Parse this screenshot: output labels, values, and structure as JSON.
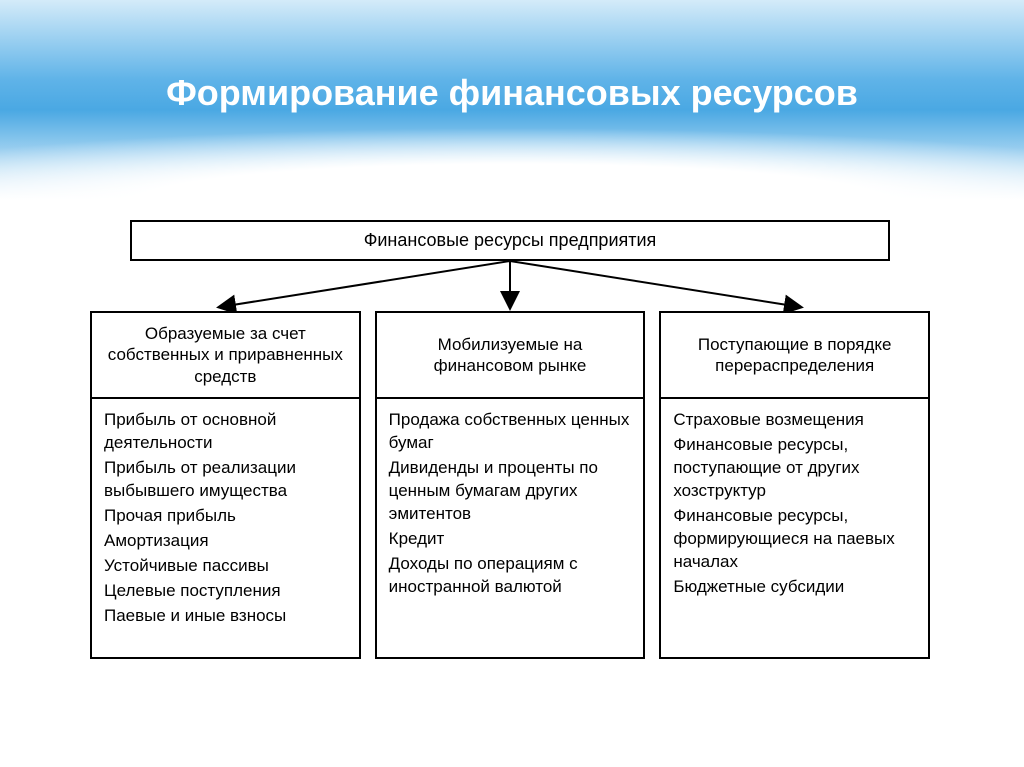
{
  "slide": {
    "title": "Формирование финансовых ресурсов",
    "title_color": "#ffffff",
    "title_fontsize": 36,
    "bg_gradient": [
      "#d4ebf9",
      "#5fb3e8",
      "#4aa8e3",
      "#ffffff"
    ]
  },
  "diagram": {
    "type": "tree",
    "root": {
      "label": "Финансовые ресурсы предприятия"
    },
    "arrows": {
      "stroke": "#000000",
      "stroke_width": 2,
      "head_size": 10
    },
    "box_style": {
      "border_color": "#000000",
      "border_width": 2,
      "background": "#ffffff",
      "fontsize": 17
    },
    "columns": [
      {
        "header": "Образуемые за счет собственных  и приравненных  средств",
        "items": [
          "Прибыль от основной деятельности",
          "Прибыль от реализации выбывшего имущества",
          "Прочая прибыль",
          "Амортизация",
          "Устойчивые пассивы",
          "Целевые поступления",
          "Паевые и иные взносы"
        ]
      },
      {
        "header": "Мобилизуемые на финансовом рынке",
        "items": [
          "Продажа собственных ценных бумаг",
          "Дивиденды  и проценты по ценным бумагам других эмитентов",
          "Кредит",
          "Доходы по операциям с иностранной валютой"
        ]
      },
      {
        "header": "Поступающие в порядке перераспределения",
        "items": [
          "Страховые возмещения",
          "Финансовые ресурсы, поступающие от других хозструктур",
          "Финансовые ресурсы, формирующиеся на паевых началах",
          "Бюджетные субсидии"
        ]
      }
    ]
  }
}
